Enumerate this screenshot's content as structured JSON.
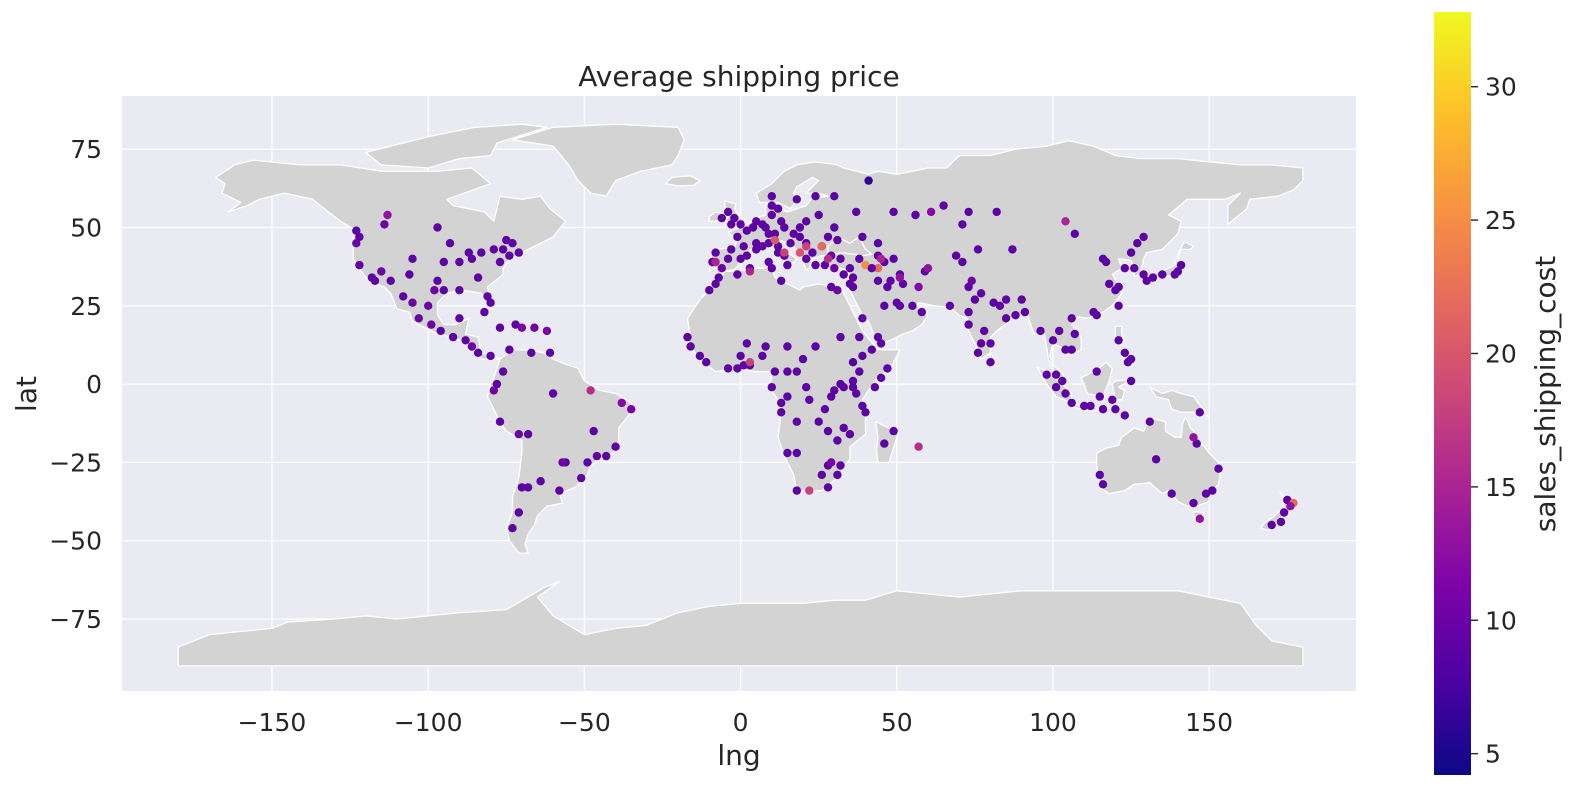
{
  "chart_data": {
    "type": "scatter",
    "title": "Average shipping price",
    "xlabel": "lng",
    "ylabel": "lat",
    "xlim": [
      -198,
      197
    ],
    "ylim": [
      -98,
      92
    ],
    "xticks": [
      -150,
      -100,
      -50,
      0,
      50,
      100,
      150
    ],
    "xtick_labels": [
      "−150",
      "−100",
      "−50",
      "0",
      "50",
      "100",
      "150"
    ],
    "yticks": [
      75,
      50,
      25,
      0,
      -25,
      -50,
      -75
    ],
    "ytick_labels": [
      "75",
      "50",
      "25",
      "0",
      "−25",
      "−50",
      "−75"
    ],
    "grid": true,
    "colorbar": {
      "label": "sales_shipping_cost",
      "range": [
        4.2,
        32.8
      ],
      "ticks": [
        30,
        25,
        20,
        15,
        10,
        5
      ],
      "tick_labels": [
        "30",
        "25",
        "20",
        "15",
        "10",
        "5"
      ],
      "colormap": "plasma"
    },
    "colors": {
      "axes_face": "#eaeaf2",
      "land": "#d3d3d3",
      "border": "#ffffff",
      "grid": "#ffffff"
    },
    "points": [
      [
        -123,
        49,
        9
      ],
      [
        -122,
        47,
        9
      ],
      [
        -123,
        45,
        10
      ],
      [
        -122,
        38,
        9
      ],
      [
        -118,
        34,
        9
      ],
      [
        -117,
        33,
        9
      ],
      [
        -112,
        33,
        9
      ],
      [
        -115,
        36,
        10
      ],
      [
        -105,
        40,
        9
      ],
      [
        -106,
        35,
        9
      ],
      [
        -97,
        33,
        9
      ],
      [
        -95,
        30,
        9
      ],
      [
        -90,
        30,
        9
      ],
      [
        -98,
        30,
        10
      ],
      [
        -87,
        42,
        9
      ],
      [
        -93,
        45,
        9
      ],
      [
        -84,
        34,
        9
      ],
      [
        -81,
        28,
        9
      ],
      [
        -80,
        26,
        9
      ],
      [
        -77,
        39,
        9
      ],
      [
        -74,
        41,
        9
      ],
      [
        -71,
        42,
        9
      ],
      [
        -76,
        43,
        9
      ],
      [
        -79,
        43,
        9
      ],
      [
        -83,
        42,
        9
      ],
      [
        -86,
        40,
        9
      ],
      [
        -90,
        39,
        9
      ],
      [
        -95,
        39,
        9
      ],
      [
        -114,
        51,
        10
      ],
      [
        -113,
        54,
        13
      ],
      [
        -97,
        50,
        9
      ],
      [
        -73,
        45,
        9
      ],
      [
        -75,
        46,
        9
      ],
      [
        -100,
        25,
        10
      ],
      [
        -103,
        21,
        10
      ],
      [
        -99,
        19,
        10
      ],
      [
        -90,
        21,
        9
      ],
      [
        -96,
        17,
        9
      ],
      [
        -105,
        26,
        10
      ],
      [
        -108,
        28,
        9
      ],
      [
        -92,
        15,
        9
      ],
      [
        -88,
        14,
        9
      ],
      [
        -86,
        12,
        10
      ],
      [
        -84,
        10,
        9
      ],
      [
        -80,
        9,
        9
      ],
      [
        -82,
        23,
        9
      ],
      [
        -77,
        18,
        9
      ],
      [
        -72,
        19,
        9
      ],
      [
        -70,
        18,
        11
      ],
      [
        -66,
        18,
        10
      ],
      [
        -62,
        17,
        11
      ],
      [
        -61,
        10,
        9
      ],
      [
        -67,
        10,
        9
      ],
      [
        -74,
        11,
        9
      ],
      [
        -76,
        4,
        9
      ],
      [
        -78,
        0,
        9
      ],
      [
        -79,
        -2,
        10
      ],
      [
        -77,
        -12,
        9
      ],
      [
        -71,
        -16,
        10
      ],
      [
        -68,
        -16,
        9
      ],
      [
        -60,
        -3,
        9
      ],
      [
        -48,
        -2,
        16
      ],
      [
        -38,
        -6,
        12
      ],
      [
        -35,
        -8,
        11
      ],
      [
        -40,
        -20,
        9
      ],
      [
        -43,
        -23,
        9
      ],
      [
        -46,
        -23,
        9
      ],
      [
        -47,
        -15,
        9
      ],
      [
        -49,
        -25,
        9
      ],
      [
        -51,
        -30,
        9
      ],
      [
        -56,
        -25,
        9
      ],
      [
        -57,
        -25,
        10
      ],
      [
        -58,
        -34,
        9
      ],
      [
        -64,
        -31,
        9
      ],
      [
        -68,
        -33,
        9
      ],
      [
        -70,
        -33,
        9
      ],
      [
        -71,
        -41,
        9
      ],
      [
        -73,
        -46,
        9
      ],
      [
        -9,
        39,
        9
      ],
      [
        -8,
        42,
        9
      ],
      [
        -4,
        40,
        9
      ],
      [
        -6,
        37,
        10
      ],
      [
        -3,
        43,
        9
      ],
      [
        0,
        40,
        9
      ],
      [
        2,
        41,
        9
      ],
      [
        2,
        49,
        9
      ],
      [
        5,
        45,
        9
      ],
      [
        5,
        43,
        9
      ],
      [
        1,
        44,
        9
      ],
      [
        -1,
        47,
        9
      ],
      [
        4,
        50,
        9
      ],
      [
        5,
        52,
        9
      ],
      [
        7,
        51,
        9
      ],
      [
        8,
        50,
        9
      ],
      [
        9,
        48,
        9
      ],
      [
        11,
        48,
        9
      ],
      [
        13,
        52,
        9
      ],
      [
        10,
        54,
        9
      ],
      [
        12,
        56,
        9
      ],
      [
        18,
        59,
        9
      ],
      [
        10,
        60,
        9
      ],
      [
        24,
        60,
        9
      ],
      [
        25,
        54,
        9
      ],
      [
        21,
        52,
        9
      ],
      [
        19,
        50,
        9
      ],
      [
        17,
        48,
        9
      ],
      [
        14,
        50,
        9
      ],
      [
        16,
        45,
        9
      ],
      [
        19,
        47,
        9
      ],
      [
        21,
        45,
        9
      ],
      [
        26,
        44,
        9
      ],
      [
        23,
        42,
        9
      ],
      [
        24,
        38,
        9
      ],
      [
        21,
        40,
        9
      ],
      [
        12,
        44,
        9
      ],
      [
        12,
        42,
        9
      ],
      [
        14,
        41,
        9
      ],
      [
        9,
        45,
        9
      ],
      [
        15,
        38,
        9
      ],
      [
        9,
        39,
        9
      ],
      [
        0,
        51,
        9
      ],
      [
        -2,
        53,
        9
      ],
      [
        -4,
        55,
        9
      ],
      [
        -6,
        53,
        9
      ],
      [
        -3,
        51,
        9
      ],
      [
        7,
        44,
        9
      ],
      [
        10,
        57,
        9
      ],
      [
        30,
        50,
        9
      ],
      [
        31,
        46,
        9
      ],
      [
        28,
        47,
        9
      ],
      [
        37,
        55,
        9
      ],
      [
        30,
        60,
        9
      ],
      [
        39,
        47,
        9
      ],
      [
        44,
        45,
        9
      ],
      [
        49,
        55,
        9
      ],
      [
        56,
        54,
        9
      ],
      [
        61,
        55,
        12
      ],
      [
        65,
        57,
        9
      ],
      [
        73,
        55,
        9
      ],
      [
        82,
        55,
        9
      ],
      [
        38,
        40,
        9
      ],
      [
        29,
        41,
        10
      ],
      [
        32,
        40,
        9
      ],
      [
        35,
        37,
        9
      ],
      [
        30,
        37,
        10
      ],
      [
        27,
        38,
        9
      ],
      [
        33,
        35,
        9
      ],
      [
        35,
        32,
        9
      ],
      [
        36,
        34,
        9
      ],
      [
        36,
        31,
        9
      ],
      [
        44,
        33,
        9
      ],
      [
        47,
        31,
        9
      ],
      [
        51,
        35,
        9
      ],
      [
        52,
        32,
        9
      ],
      [
        59,
        36,
        9
      ],
      [
        46,
        39,
        9
      ],
      [
        44,
        41,
        9
      ],
      [
        49,
        40,
        9
      ],
      [
        55,
        25,
        9
      ],
      [
        51,
        25,
        9
      ],
      [
        50,
        26,
        9
      ],
      [
        58,
        23,
        9
      ],
      [
        46,
        25,
        9
      ],
      [
        39,
        21,
        9
      ],
      [
        44,
        15,
        9
      ],
      [
        45,
        13,
        9
      ],
      [
        39,
        9,
        9
      ],
      [
        38,
        15,
        9
      ],
      [
        32,
        15,
        9
      ],
      [
        31,
        30,
        10
      ],
      [
        29,
        31,
        9
      ],
      [
        13,
        33,
        9
      ],
      [
        10,
        37,
        9
      ],
      [
        3,
        37,
        9
      ],
      [
        -1,
        35,
        9
      ],
      [
        -7,
        34,
        9
      ],
      [
        -8,
        32,
        9
      ],
      [
        -10,
        30,
        9
      ],
      [
        -17,
        15,
        9
      ],
      [
        -16,
        12,
        9
      ],
      [
        -13,
        9,
        9
      ],
      [
        -11,
        7,
        9
      ],
      [
        -4,
        5,
        9
      ],
      [
        -1,
        5,
        9
      ],
      [
        0,
        9,
        9
      ],
      [
        1,
        6,
        9
      ],
      [
        2,
        13,
        9
      ],
      [
        3,
        6,
        9
      ],
      [
        7,
        9,
        9
      ],
      [
        8,
        12,
        9
      ],
      [
        3,
        7,
        18
      ],
      [
        11,
        4,
        9
      ],
      [
        15,
        4,
        9
      ],
      [
        18,
        4,
        9
      ],
      [
        15,
        12,
        9
      ],
      [
        10,
        -1,
        9
      ],
      [
        13,
        -6,
        9
      ],
      [
        15,
        -4,
        9
      ],
      [
        18,
        -12,
        9
      ],
      [
        13,
        -9,
        9
      ],
      [
        15,
        -22,
        9
      ],
      [
        18,
        -22,
        9
      ],
      [
        18,
        -34,
        9
      ],
      [
        22,
        -34,
        18
      ],
      [
        26,
        -29,
        9
      ],
      [
        28,
        -26,
        9
      ],
      [
        31,
        -29,
        9
      ],
      [
        28,
        -33,
        9
      ],
      [
        32,
        -26,
        9
      ],
      [
        31,
        -18,
        9
      ],
      [
        28,
        -15,
        9
      ],
      [
        33,
        -14,
        9
      ],
      [
        35,
        -16,
        9
      ],
      [
        39,
        -7,
        9
      ],
      [
        37,
        -3,
        9
      ],
      [
        36,
        -1,
        9
      ],
      [
        33,
        -1,
        9
      ],
      [
        32,
        0,
        9
      ],
      [
        30,
        -2,
        9
      ],
      [
        29,
        -4,
        9
      ],
      [
        25,
        -12,
        9
      ],
      [
        27,
        -8,
        9
      ],
      [
        22,
        -5,
        9
      ],
      [
        46,
        -19,
        9
      ],
      [
        49,
        -15,
        9
      ],
      [
        57,
        -20,
        16
      ],
      [
        40,
        -9,
        9
      ],
      [
        43,
        -1,
        9
      ],
      [
        45,
        2,
        9
      ],
      [
        47,
        5,
        9
      ],
      [
        42,
        11,
        9
      ],
      [
        38,
        4,
        9
      ],
      [
        36,
        1,
        9
      ],
      [
        24,
        12,
        9
      ],
      [
        20,
        8,
        9
      ],
      [
        21,
        -1,
        9
      ],
      [
        67,
        25,
        9
      ],
      [
        73,
        31,
        9
      ],
      [
        74,
        33,
        10
      ],
      [
        77,
        29,
        9
      ],
      [
        75,
        27,
        9
      ],
      [
        73,
        23,
        9
      ],
      [
        73,
        19,
        9
      ],
      [
        78,
        17,
        9
      ],
      [
        80,
        13,
        9
      ],
      [
        77,
        13,
        9
      ],
      [
        76,
        10,
        9
      ],
      [
        80,
        7,
        9
      ],
      [
        85,
        21,
        9
      ],
      [
        88,
        22,
        9
      ],
      [
        85,
        27,
        9
      ],
      [
        91,
        23,
        9
      ],
      [
        90,
        27,
        9
      ],
      [
        81,
        26,
        9
      ],
      [
        83,
        25,
        9
      ],
      [
        69,
        41,
        9
      ],
      [
        71,
        39,
        9
      ],
      [
        76,
        43,
        9
      ],
      [
        71,
        51,
        9
      ],
      [
        87,
        43,
        9
      ],
      [
        96,
        17,
        9
      ],
      [
        100,
        14,
        9
      ],
      [
        101,
        3,
        9
      ],
      [
        103,
        1,
        9
      ],
      [
        104,
        11,
        9
      ],
      [
        106,
        11,
        9
      ],
      [
        106,
        21,
        9
      ],
      [
        107,
        16,
        9
      ],
      [
        102,
        17,
        9
      ],
      [
        114,
        22,
        9
      ],
      [
        121,
        25,
        9
      ],
      [
        113,
        23,
        9
      ],
      [
        120,
        30,
        9
      ],
      [
        121,
        31,
        9
      ],
      [
        118,
        32,
        9
      ],
      [
        116,
        40,
        9
      ],
      [
        117,
        39,
        9
      ],
      [
        121,
        31,
        9
      ],
      [
        123,
        37,
        9
      ],
      [
        126,
        37,
        9
      ],
      [
        129,
        35,
        9
      ],
      [
        127,
        45,
        9
      ],
      [
        125,
        42,
        9
      ],
      [
        129,
        47,
        9
      ],
      [
        132,
        34,
        9
      ],
      [
        135,
        35,
        9
      ],
      [
        140,
        36,
        9
      ],
      [
        141,
        38,
        9
      ],
      [
        139,
        35,
        9
      ],
      [
        130,
        33,
        9
      ],
      [
        107,
        48,
        9
      ],
      [
        104,
        52,
        15
      ],
      [
        106,
        -6,
        9
      ],
      [
        110,
        -7,
        9
      ],
      [
        112,
        -7,
        9
      ],
      [
        116,
        -8,
        9
      ],
      [
        120,
        -8,
        9
      ],
      [
        123,
        -10,
        9
      ],
      [
        115,
        -4,
        9
      ],
      [
        119,
        -5,
        9
      ],
      [
        125,
        1,
        9
      ],
      [
        121,
        14,
        9
      ],
      [
        123,
        10,
        9
      ],
      [
        124,
        7,
        9
      ],
      [
        125,
        8,
        9
      ],
      [
        114,
        4,
        9
      ],
      [
        98,
        3,
        9
      ],
      [
        101,
        -1,
        9
      ],
      [
        104,
        -3,
        9
      ],
      [
        147,
        -9,
        9
      ],
      [
        153,
        -27,
        9
      ],
      [
        151,
        -34,
        9
      ],
      [
        145,
        -38,
        9
      ],
      [
        138,
        -35,
        9
      ],
      [
        147,
        -43,
        13
      ],
      [
        149,
        -35,
        9
      ],
      [
        146,
        -19,
        9
      ],
      [
        145,
        -17,
        13
      ],
      [
        131,
        -12,
        9
      ],
      [
        116,
        -32,
        9
      ],
      [
        115,
        -29,
        9
      ],
      [
        133,
        -24,
        9
      ],
      [
        175,
        -37,
        9
      ],
      [
        174,
        -41,
        9
      ],
      [
        173,
        -44,
        9
      ],
      [
        177,
        -38,
        22
      ],
      [
        176,
        -39,
        13
      ],
      [
        170,
        -45,
        9
      ],
      [
        60,
        37,
        13
      ],
      [
        44,
        37,
        22
      ],
      [
        40,
        38,
        25
      ],
      [
        26,
        44,
        22
      ],
      [
        19,
        42,
        20
      ],
      [
        21,
        44,
        18
      ],
      [
        28,
        40,
        16
      ],
      [
        11,
        46,
        20
      ],
      [
        14,
        42,
        18
      ],
      [
        3,
        36,
        15
      ],
      [
        -8,
        39,
        15
      ],
      [
        57,
        31,
        12
      ],
      [
        45,
        40,
        15
      ],
      [
        51,
        34,
        13
      ],
      [
        48,
        33,
        9
      ],
      [
        41,
        65,
        6
      ],
      [
        42,
        37,
        9
      ],
      [
        36,
        7,
        8
      ],
      [
        29,
        -25,
        11
      ]
    ]
  }
}
